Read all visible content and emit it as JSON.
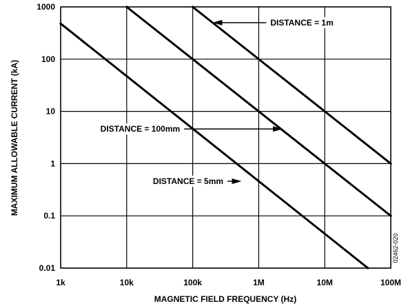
{
  "chart_data": {
    "type": "line",
    "xlabel": "MAGNETIC FIELD FREQUENCY (Hz)",
    "ylabel": "MAXIMUM ALLOWABLE CURRENT (kA)",
    "x_scale": "log",
    "y_scale": "log",
    "xlim": [
      1000,
      100000000
    ],
    "ylim": [
      0.01,
      1000
    ],
    "grid": true,
    "x_ticks": [
      {
        "value": 1000,
        "label": "1k"
      },
      {
        "value": 10000,
        "label": "10k"
      },
      {
        "value": 100000,
        "label": "100k"
      },
      {
        "value": 1000000,
        "label": "1M"
      },
      {
        "value": 10000000,
        "label": "10M"
      },
      {
        "value": 100000000,
        "label": "100M"
      }
    ],
    "y_ticks": [
      {
        "value": 0.01,
        "label": "0.01"
      },
      {
        "value": 0.1,
        "label": "0.1"
      },
      {
        "value": 1,
        "label": "1"
      },
      {
        "value": 10,
        "label": "10"
      },
      {
        "value": 100,
        "label": "100"
      },
      {
        "value": 1000,
        "label": "1000"
      }
    ],
    "series": [
      {
        "name": "DISTANCE = 1m",
        "x": [
          100000,
          100000000
        ],
        "y": [
          1000,
          1
        ]
      },
      {
        "name": "DISTANCE = 100mm",
        "x": [
          10000,
          100000000
        ],
        "y": [
          1000,
          0.1
        ]
      },
      {
        "name": "DISTANCE = 5mm",
        "x": [
          1000,
          45000000
        ],
        "y": [
          480,
          0.01
        ]
      }
    ],
    "annotations": [
      {
        "text": "DISTANCE = 1m",
        "text_x": 1300000,
        "text_y": 500,
        "arrow_to_x": 200000,
        "arrow_to_y": 500,
        "text_anchor": "end-at-arrow-tail"
      },
      {
        "text": "DISTANCE = 100mm",
        "text_x": 4000,
        "text_y": 4.6,
        "arrow_to_x": 2300000,
        "arrow_to_y": 4.6
      },
      {
        "text": "DISTANCE = 5mm",
        "text_x": 25000,
        "text_y": 0.46,
        "arrow_to_x": 550000,
        "arrow_to_y": 0.46
      }
    ],
    "figure_id": "02462-020"
  }
}
